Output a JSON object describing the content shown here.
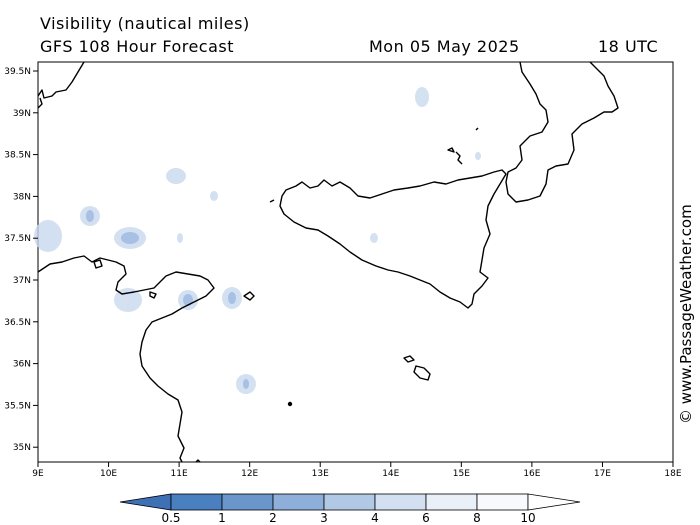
{
  "header": {
    "title": "Visibility (nautical miles)",
    "subtitle": "GFS 108 Hour Forecast",
    "date": "Mon 05 May 2025",
    "time": "18 UTC"
  },
  "axes": {
    "lon_labels": [
      "9E",
      "10E",
      "11E",
      "12E",
      "13E",
      "14E",
      "15E",
      "16E",
      "17E",
      "18E"
    ],
    "lat_labels": [
      "39.5N",
      "39N",
      "38.5N",
      "38N",
      "37.5N",
      "37N",
      "36.5N",
      "36N",
      "35.5N",
      "35N"
    ]
  },
  "colorbar": {
    "labels": [
      "0.5",
      "1",
      "2",
      "3",
      "4",
      "6",
      "8",
      "10"
    ],
    "colors": [
      "#3f6fb5",
      "#4a7fc0",
      "#6b96cc",
      "#8eafd9",
      "#b2c9e6",
      "#d3e0f1",
      "#eaf0f8",
      "#f7f9fc",
      "#ffffff"
    ]
  },
  "watermark": "© www.PassageWeather.com"
}
